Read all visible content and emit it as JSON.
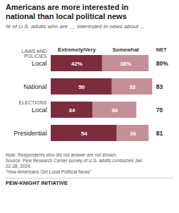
{
  "chart_data": {
    "type": "bar",
    "orientation": "horizontal",
    "stacked": true,
    "data_labels": true,
    "tick_labels": "y",
    "title": "Americans are more interested in\nnational than local political news",
    "subtitle": "% of U.S. adults who are __ interested in news about ...",
    "categories": [
      "Local",
      "National",
      "Local",
      "Presidential"
    ],
    "groups": [
      "LAWS AND\nPOLICIES",
      "LAWS AND\nPOLICIES",
      "ELECTIONS",
      "ELECTIONS"
    ],
    "series": [
      {
        "name": "Extremely/Very",
        "color": "#7b2d3e",
        "values": [
          42,
          50,
          34,
          54
        ],
        "value_labels": [
          "42%",
          "50",
          "34",
          "54"
        ]
      },
      {
        "name": "Somewhat",
        "color": "#c49098",
        "values": [
          38,
          33,
          36,
          26
        ],
        "value_labels": [
          "38%",
          "33",
          "36",
          "26"
        ]
      }
    ],
    "net": {
      "name": "NET",
      "values": [
        80,
        83,
        70,
        81
      ],
      "value_labels": [
        "80%",
        "83",
        "70",
        "81"
      ]
    },
    "xlim": [
      0,
      83
    ],
    "notes": [
      "Note: Respondents who did not answer are not shown.",
      "Source: Pew Research Center survey of U.S. adults conducted Jan.",
      "22-28, 2024.",
      "\"How Americans Get Local Political News\""
    ],
    "footer": "PEW-KNIGHT INITIATIVE"
  }
}
